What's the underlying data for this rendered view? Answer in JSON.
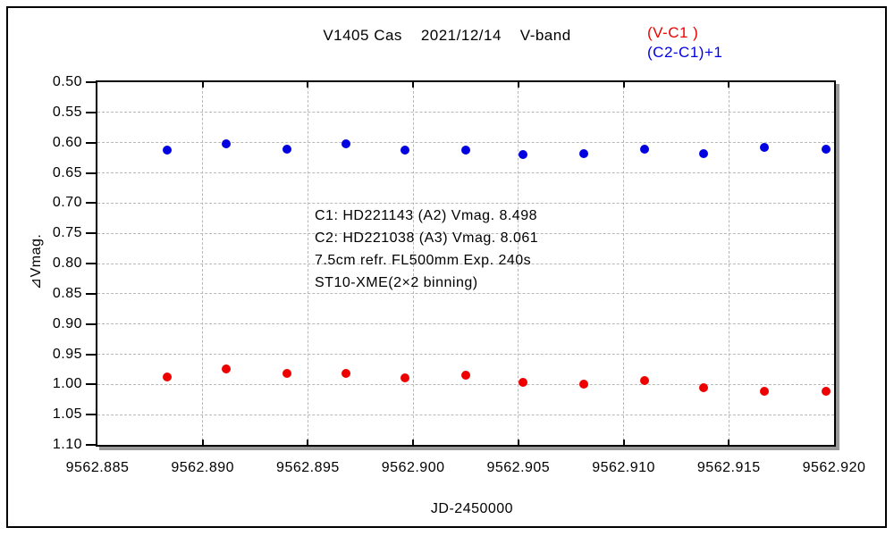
{
  "title": "V1405 Cas    2021/12/14    V-band",
  "legend": {
    "items": [
      {
        "label": "(V-C1 )",
        "color": "#ee0000"
      },
      {
        "label": "(C2-C1)+1",
        "color": "#0000e0"
      }
    ]
  },
  "annotation": {
    "lines": [
      "C1: HD221143 (A2) Vmag. 8.498",
      "C2: HD221038 (A3) Vmag. 8.061",
      "7.5cm refr. FL500mm Exp. 240s",
      "ST10-XME(2×2 binning)"
    ]
  },
  "chart_data": {
    "type": "scatter",
    "title": "V1405 Cas 2021/12/14 V-band",
    "xlabel": "JD-2450000",
    "ylabel": "⊿Vmag.",
    "x_ticks": [
      "9562.885",
      "9562.890",
      "9562.895",
      "9562.900",
      "9562.905",
      "9562.910",
      "9562.915",
      "9562.920"
    ],
    "y_ticks": [
      "0.50",
      "0.55",
      "0.60",
      "0.65",
      "0.70",
      "0.75",
      "0.80",
      "0.85",
      "0.90",
      "0.95",
      "1.00",
      "1.05",
      "1.10"
    ],
    "xlim": [
      9562.885,
      9562.92
    ],
    "ylim": [
      0.5,
      1.1
    ],
    "y_axis_inverted": true,
    "grid": "dashed",
    "x": [
      9562.8883,
      9562.8911,
      9562.894,
      9562.8968,
      9562.8996,
      9562.9025,
      9562.9052,
      9562.9081,
      9562.911,
      9562.9138,
      9562.9167,
      9562.9196
    ],
    "series": [
      {
        "name": "(V-C1)",
        "color": "#ee0000",
        "values": [
          0.988,
          0.975,
          0.982,
          0.982,
          0.989,
          0.984,
          0.997,
          0.999,
          0.993,
          1.006,
          1.011,
          1.011
        ]
      },
      {
        "name": "(C2-C1)+1",
        "color": "#0000e0",
        "values": [
          0.612,
          0.602,
          0.611,
          0.602,
          0.612,
          0.613,
          0.62,
          0.618,
          0.611,
          0.618,
          0.608,
          0.611
        ]
      }
    ]
  }
}
